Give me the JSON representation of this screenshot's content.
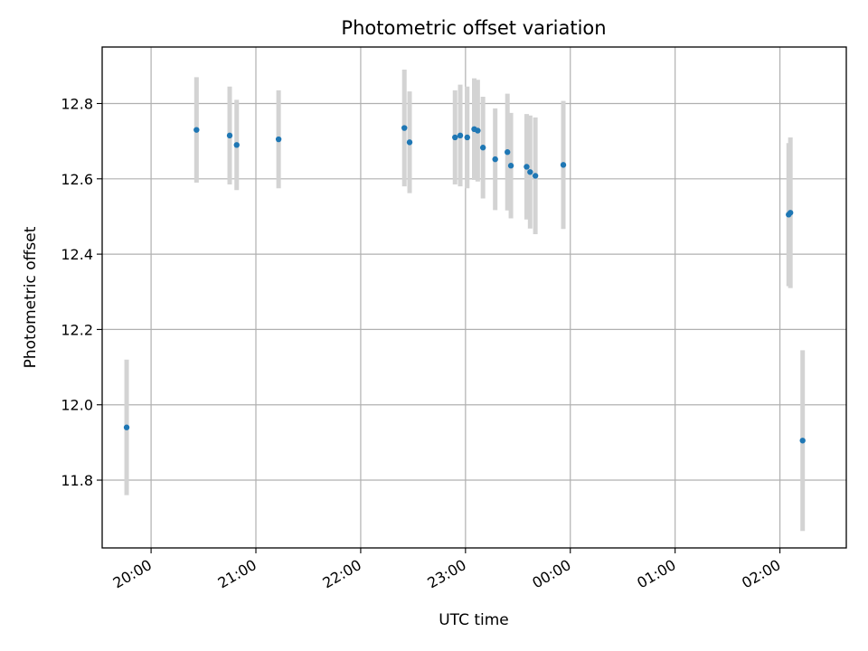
{
  "chart_data": {
    "type": "scatter",
    "title": "Photometric offset variation",
    "xlabel": "UTC time",
    "ylabel": "Photometric offset",
    "grid": true,
    "x_unit": "UTC time (hh:mm)",
    "xlim": [
      "19:32",
      "02:38"
    ],
    "ylim": [
      11.62,
      12.95
    ],
    "x_ticks": [
      "20:00",
      "21:00",
      "22:00",
      "23:00",
      "00:00",
      "01:00",
      "02:00"
    ],
    "y_ticks": [
      11.8,
      12.0,
      12.2,
      12.4,
      12.6,
      12.8
    ],
    "y_tick_labels": [
      "11.8",
      "12.0",
      "12.2",
      "12.4",
      "12.6",
      "12.8"
    ],
    "x_tick_rotation_deg": 30,
    "colors": {
      "marker": "#1f77b4",
      "errorbar": "#d3d3d3",
      "grid": "#b0b0b0"
    },
    "points": [
      {
        "x": "19:46",
        "y": 11.94,
        "err": 0.18
      },
      {
        "x": "20:26",
        "y": 12.73,
        "err": 0.14
      },
      {
        "x": "20:45",
        "y": 12.715,
        "err": 0.13
      },
      {
        "x": "20:49",
        "y": 12.69,
        "err": 0.12
      },
      {
        "x": "21:13",
        "y": 12.705,
        "err": 0.13
      },
      {
        "x": "22:25",
        "y": 12.735,
        "err": 0.155
      },
      {
        "x": "22:28",
        "y": 12.697,
        "err": 0.135
      },
      {
        "x": "22:54",
        "y": 12.71,
        "err": 0.125
      },
      {
        "x": "22:57",
        "y": 12.715,
        "err": 0.135
      },
      {
        "x": "23:01",
        "y": 12.71,
        "err": 0.135
      },
      {
        "x": "23:05",
        "y": 12.732,
        "err": 0.135
      },
      {
        "x": "23:07",
        "y": 12.728,
        "err": 0.135
      },
      {
        "x": "23:10",
        "y": 12.683,
        "err": 0.135
      },
      {
        "x": "23:17",
        "y": 12.652,
        "err": 0.135
      },
      {
        "x": "23:24",
        "y": 12.671,
        "err": 0.155
      },
      {
        "x": "23:26",
        "y": 12.635,
        "err": 0.14
      },
      {
        "x": "23:35",
        "y": 12.632,
        "err": 0.14
      },
      {
        "x": "23:37",
        "y": 12.618,
        "err": 0.15
      },
      {
        "x": "23:40",
        "y": 12.608,
        "err": 0.155
      },
      {
        "x": "23:56",
        "y": 12.637,
        "err": 0.17
      },
      {
        "x": "02:05",
        "y": 12.505,
        "err": 0.19
      },
      {
        "x": "02:06",
        "y": 12.51,
        "err": 0.2
      },
      {
        "x": "02:13",
        "y": 11.905,
        "err": 0.24
      }
    ]
  }
}
